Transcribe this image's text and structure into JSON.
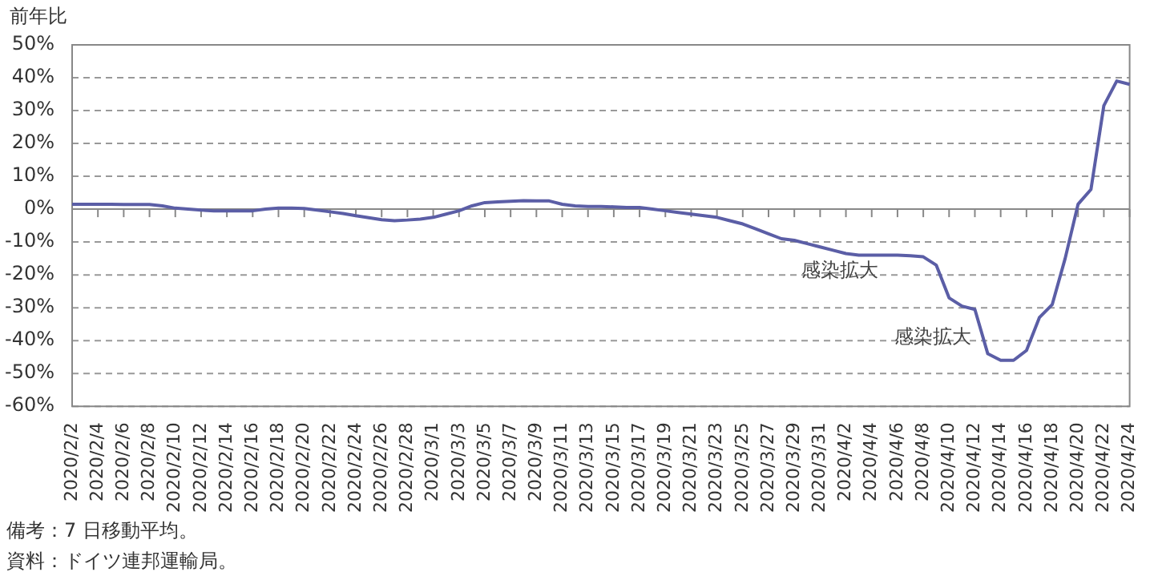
{
  "chart_data": {
    "type": "line",
    "ylabel": "前年比",
    "categories": [
      "2020/2/2",
      null,
      "2020/2/4",
      null,
      "2020/2/6",
      null,
      "2020/2/8",
      null,
      "2020/2/10",
      null,
      "2020/2/12",
      null,
      "2020/2/14",
      null,
      "2020/2/16",
      null,
      "2020/2/18",
      null,
      "2020/2/20",
      null,
      "2020/2/22",
      null,
      "2020/2/24",
      null,
      "2020/2/26",
      null,
      "2020/2/28",
      null,
      "2020/3/1",
      null,
      "2020/3/3",
      null,
      "2020/3/5",
      null,
      "2020/3/7",
      null,
      "2020/3/9",
      null,
      "2020/3/11",
      null,
      "2020/3/13",
      null,
      "2020/3/15",
      null,
      "2020/3/17",
      null,
      "2020/3/19",
      null,
      "2020/3/21",
      null,
      "2020/3/23",
      null,
      "2020/3/25",
      null,
      "2020/3/27",
      null,
      "2020/3/29",
      null,
      "2020/3/31",
      null,
      "2020/4/2",
      null,
      "2020/4/4",
      null,
      "2020/4/6",
      null,
      "2020/4/8",
      null,
      "2020/4/10",
      null,
      "2020/4/12",
      null,
      "2020/4/14",
      null,
      "2020/4/16",
      null,
      "2020/4/18",
      null,
      "2020/4/20",
      null,
      "2020/4/22",
      null,
      "2020/4/24"
    ],
    "series": [
      {
        "color": "#5b5ea6",
        "values": [
          1.5,
          1.5,
          1.5,
          1.5,
          1.4,
          1.4,
          1.4,
          1,
          0.3,
          0,
          -0.3,
          -0.5,
          -0.5,
          -0.5,
          -0.5,
          0,
          0.3,
          0.3,
          0.2,
          -0.3,
          -0.8,
          -1.3,
          -2,
          -2.6,
          -3.2,
          -3.5,
          -3.3,
          -3,
          -2.5,
          -1.5,
          -0.5,
          1,
          2,
          2.2,
          2.4,
          2.6,
          2.5,
          2.5,
          1.5,
          1,
          0.8,
          0.8,
          0.7,
          0.5,
          0.5,
          0,
          -0.5,
          -1,
          -1.5,
          -2,
          -2.5,
          -3.5,
          -4.5,
          -6,
          -7.5,
          -9,
          -9.5,
          -10.5,
          -11.5,
          -12.5,
          -13.5,
          -14,
          -14,
          -14,
          -14,
          -14.2,
          -14.5,
          -17,
          -27,
          -29.5,
          -30.5,
          -44,
          -46,
          -46,
          -43,
          -33,
          -29,
          -15,
          1.5,
          6,
          31.5,
          39,
          38
        ]
      }
    ],
    "ylim": [
      -60,
      50
    ],
    "yticks": [
      {
        "value": -60,
        "label": "-60%"
      },
      {
        "value": -50,
        "label": "-50%"
      },
      {
        "value": -40,
        "label": "-40%"
      },
      {
        "value": -30,
        "label": "-30%"
      },
      {
        "value": -20,
        "label": "-20%"
      },
      {
        "value": -10,
        "label": "-10%"
      },
      {
        "value": 0,
        "label": "0%"
      },
      {
        "value": 10,
        "label": "10%"
      },
      {
        "value": 20,
        "label": "20%"
      },
      {
        "value": 30,
        "label": "30%"
      },
      {
        "value": 40,
        "label": "40%"
      },
      {
        "value": 50,
        "label": "50%"
      }
    ],
    "grid": "y",
    "legend": false,
    "marker": "none",
    "line_style": "solid",
    "annotations": [
      "感染拡大",
      "感染拡大",
      "備考：7 日移動平均。",
      "資料：ドイツ連邦運輸局。"
    ]
  }
}
